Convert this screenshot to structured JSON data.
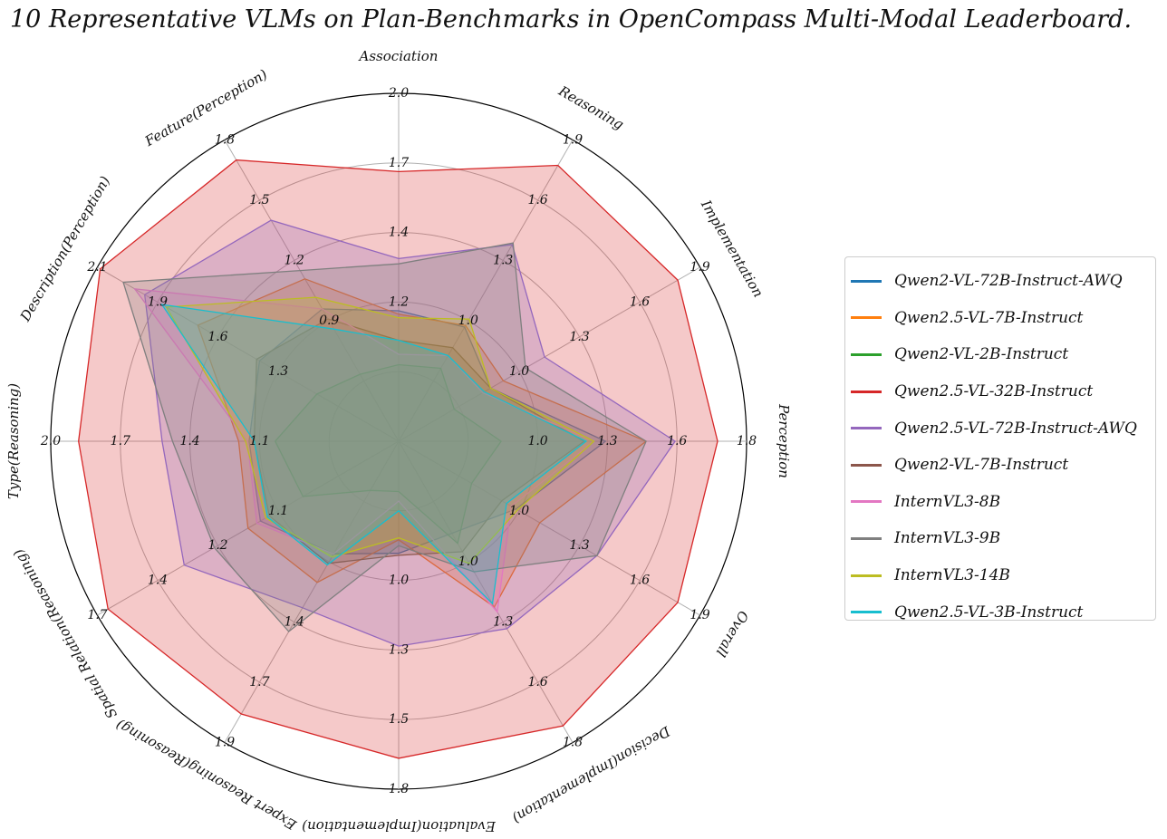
{
  "chart_data": {
    "type": "radar",
    "title": "10 Representative VLMs on Plan-Benchmarks in OpenCompass Multi-Modal Leaderboard.",
    "axes": [
      {
        "name": "Association",
        "ticks": [
          "1.2",
          "1.4",
          "1.7",
          "2.0"
        ],
        "max": 2.0
      },
      {
        "name": "Reasoning",
        "ticks": [
          "1.0",
          "1.3",
          "1.6",
          "1.9"
        ],
        "max": 1.9
      },
      {
        "name": "Implementation",
        "ticks": [
          "1.0",
          "1.3",
          "1.6",
          "1.9"
        ],
        "max": 1.9
      },
      {
        "name": "Perception",
        "ticks": [
          "1.0",
          "1.3",
          "1.6",
          "1.8"
        ],
        "max": 1.8
      },
      {
        "name": "Overall",
        "ticks": [
          "1.0",
          "1.3",
          "1.6",
          "1.9"
        ],
        "max": 1.9
      },
      {
        "name": "Decision(Implementation)",
        "ticks": [
          "1.0",
          "1.3",
          "1.6",
          "1.8"
        ],
        "max": 1.8
      },
      {
        "name": "Evaluation(Implementation)",
        "ticks": [
          "1.0",
          "1.3",
          "1.5",
          "1.8"
        ],
        "max": 1.8
      },
      {
        "name": "Expert Reasoning(Reasoning)",
        "ticks": [
          "1.4",
          "1.7",
          "1.9"
        ],
        "max": 1.9
      },
      {
        "name": "Spatial Relation(Reasoning)",
        "ticks": [
          "1.1",
          "1.2",
          "1.4",
          "1.7"
        ],
        "max": 1.7
      },
      {
        "name": "Type(Reasoning)",
        "ticks": [
          "1.1",
          "1.4",
          "1.7",
          "2.0"
        ],
        "max": 2.0
      },
      {
        "name": "Description(Perception)",
        "ticks": [
          "1.3",
          "1.6",
          "1.9",
          "2.1"
        ],
        "max": 2.1
      },
      {
        "name": "Feature(Perception)",
        "ticks": [
          "0.9",
          "1.2",
          "1.5",
          "1.8"
        ],
        "max": 1.8
      }
    ],
    "series": [
      {
        "name": "Qwen2-VL-72B-Instruct-AWQ",
        "color": "#1f77b4",
        "values": [
          0.75,
          0.72,
          0.58,
          1.07,
          0.74,
          0.55,
          0.58,
          0.71,
          0.78,
          0.86,
          0.97,
          0.79
        ]
      },
      {
        "name": "Qwen2.5-VL-7B-Instruct",
        "color": "#ff7f0e",
        "values": [
          0.73,
          0.73,
          0.66,
          1.28,
          0.89,
          0.99,
          0.51,
          0.89,
          0.85,
          0.92,
          1.4,
          0.97
        ]
      },
      {
        "name": "Qwen2-VL-2B-Instruct",
        "color": "#2ca02c",
        "values": [
          0.44,
          0.46,
          0.35,
          0.53,
          0.46,
          0.61,
          0.26,
          0.31,
          0.54,
          0.71,
          0.57,
          0.4
        ]
      },
      {
        "name": "Qwen2.5-VL-32B-Instruct",
        "color": "#d62728",
        "values": [
          1.55,
          1.74,
          1.76,
          1.65,
          1.76,
          1.7,
          1.64,
          1.72,
          1.64,
          1.84,
          2.08,
          1.68
        ]
      },
      {
        "name": "Qwen2.5-VL-72B-Instruct-AWQ",
        "color": "#9467bd",
        "values": [
          1.05,
          1.24,
          0.92,
          1.43,
          1.25,
          1.12,
          1.06,
          1.05,
          1.21,
          1.36,
          1.77,
          1.32
        ]
      },
      {
        "name": "Qwen2-VL-7B-Instruct",
        "color": "#8c564b",
        "values": [
          0.58,
          0.59,
          0.58,
          0.96,
          0.65,
          0.66,
          0.59,
          0.77,
          0.73,
          0.83,
          0.99,
          0.73
        ]
      },
      {
        "name": "InternVL3-8B",
        "color": "#e377c2",
        "values": [
          0.5,
          0.54,
          0.53,
          1.01,
          0.71,
          1.02,
          0.31,
          0.71,
          0.8,
          0.87,
          1.84,
          0.79
        ]
      },
      {
        "name": "InternVL3-9B",
        "color": "#7f7f7f",
        "values": [
          1.02,
          1.25,
          0.8,
          1.28,
          1.25,
          0.78,
          0.54,
          1.2,
          1.04,
          1.3,
          1.92,
          1.02
        ]
      },
      {
        "name": "InternVL3-14B",
        "color": "#bcbd22",
        "values": [
          0.71,
          0.77,
          0.58,
          1.01,
          0.75,
          0.73,
          0.5,
          0.73,
          0.75,
          0.88,
          1.62,
          0.86
        ]
      },
      {
        "name": "Qwen2.5-VL-3B-Instruct",
        "color": "#17becf",
        "values": [
          0.58,
          0.54,
          0.54,
          0.97,
          0.68,
          0.97,
          0.36,
          0.78,
          0.74,
          0.83,
          1.65,
          0.67
        ]
      }
    ],
    "grid": true,
    "legend_position": "right"
  }
}
